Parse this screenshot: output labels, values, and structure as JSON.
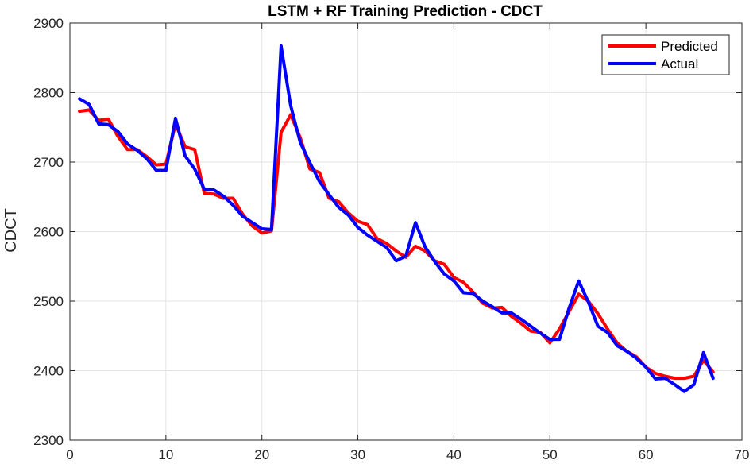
{
  "chart_data": {
    "type": "line",
    "title": "LSTM + RF Training Prediction - CDCT",
    "xlabel": "",
    "ylabel": "CDCT",
    "xlim": [
      0,
      70
    ],
    "ylim": [
      2300,
      2900
    ],
    "xticks": [
      0,
      10,
      20,
      30,
      40,
      50,
      60,
      70
    ],
    "yticks": [
      2300,
      2400,
      2500,
      2600,
      2700,
      2800,
      2900
    ],
    "grid": true,
    "legend_position": "top-right",
    "x": [
      1,
      2,
      3,
      4,
      5,
      6,
      7,
      8,
      9,
      10,
      11,
      12,
      13,
      14,
      15,
      16,
      17,
      18,
      19,
      20,
      21,
      22,
      23,
      24,
      25,
      26,
      27,
      28,
      29,
      30,
      31,
      32,
      33,
      34,
      35,
      36,
      37,
      38,
      39,
      40,
      41,
      42,
      43,
      44,
      45,
      46,
      47,
      48,
      49,
      50,
      51,
      52,
      53,
      54,
      55,
      56,
      57,
      58,
      59,
      60,
      61,
      62,
      63,
      64,
      65,
      66,
      67
    ],
    "series": [
      {
        "name": "Predicted",
        "color": "#ff0000",
        "values": [
          2773,
          2775,
          2760,
          2762,
          2737,
          2718,
          2718,
          2708,
          2696,
          2697,
          2755,
          2722,
          2718,
          2655,
          2654,
          2648,
          2648,
          2625,
          2608,
          2598,
          2601,
          2743,
          2768,
          2735,
          2690,
          2685,
          2648,
          2643,
          2627,
          2615,
          2610,
          2590,
          2583,
          2572,
          2563,
          2579,
          2572,
          2558,
          2553,
          2534,
          2527,
          2513,
          2497,
          2490,
          2491,
          2478,
          2468,
          2457,
          2455,
          2440,
          2460,
          2485,
          2510,
          2500,
          2482,
          2460,
          2440,
          2428,
          2420,
          2405,
          2396,
          2392,
          2389,
          2389,
          2392,
          2415,
          2398
        ]
      },
      {
        "name": "Actual",
        "color": "#0000ff",
        "values": [
          2791,
          2783,
          2755,
          2754,
          2744,
          2726,
          2717,
          2705,
          2688,
          2688,
          2763,
          2709,
          2690,
          2661,
          2660,
          2651,
          2638,
          2622,
          2613,
          2604,
          2603,
          2867,
          2781,
          2728,
          2699,
          2672,
          2653,
          2635,
          2624,
          2606,
          2595,
          2586,
          2577,
          2558,
          2565,
          2613,
          2578,
          2557,
          2539,
          2529,
          2512,
          2511,
          2500,
          2492,
          2483,
          2483,
          2474,
          2464,
          2454,
          2445,
          2445,
          2490,
          2529,
          2499,
          2464,
          2455,
          2436,
          2428,
          2418,
          2405,
          2388,
          2389,
          2380,
          2370,
          2380,
          2426,
          2389
        ]
      }
    ]
  }
}
